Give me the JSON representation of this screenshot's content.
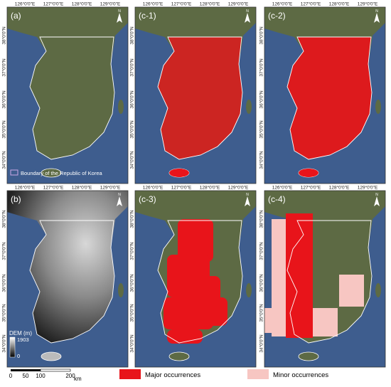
{
  "panels": [
    {
      "label": "(a)"
    },
    {
      "label": "(c-1)"
    },
    {
      "label": "(c-2)"
    },
    {
      "label": "(b)"
    },
    {
      "label": "(c-3)"
    },
    {
      "label": "(c-4)"
    }
  ],
  "longitude_labels": [
    "126°0'0\"E",
    "127°0'0\"E",
    "128°0'0\"E",
    "129°0'0\"E"
  ],
  "latitude_labels": [
    "38°0'0\"N",
    "37°0'0\"N",
    "36°0'0\"N",
    "35°0'0\"N",
    "34°0'0\"N"
  ],
  "north_arrow": "N",
  "boundary_legend": "Boundary of the Republic of Korea",
  "dem_legend": {
    "title": "DEM (m)",
    "max": "1903",
    "min": "0"
  },
  "scale_bar": {
    "ticks": [
      "0",
      "50",
      "100",
      "200"
    ],
    "unit": "km"
  },
  "legend": [
    {
      "label": "Major occurrences",
      "color": "#e8141a"
    },
    {
      "label": "Minor occurrences",
      "color": "#f7c6c2"
    }
  ]
}
